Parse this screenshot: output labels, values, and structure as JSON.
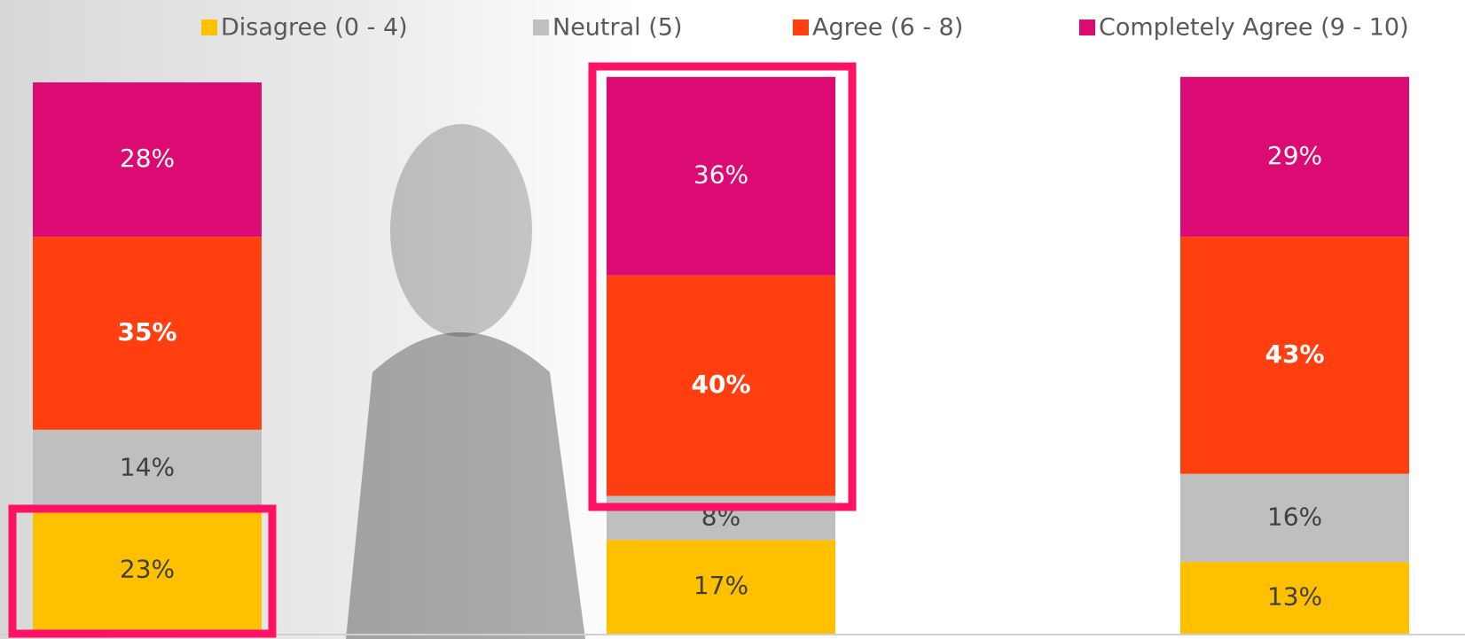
{
  "chart_data": {
    "type": "stacked_bar",
    "categories": [
      null,
      null,
      null
    ],
    "ylim": [
      0,
      100
    ],
    "series": [
      {
        "name": "Disagree (0 - 4)",
        "color": "#ffc000",
        "label_color": "#404040",
        "values": [
          23,
          17,
          13
        ],
        "value_labels": [
          "23%",
          "17%",
          "13%"
        ]
      },
      {
        "name": "Neutral (5)",
        "color": "#bfbfbf",
        "label_color": "#404040",
        "values": [
          14,
          8,
          16
        ],
        "value_labels": [
          "14%",
          "8%",
          "16%"
        ]
      },
      {
        "name": "Agree (6 - 8)",
        "color": "#ff3f0f",
        "label_color": "#ffffff",
        "label_bold": true,
        "values": [
          35,
          40,
          43
        ],
        "value_labels": [
          "35%",
          "40%",
          "43%"
        ]
      },
      {
        "name": "Completely Agree (9 - 10)",
        "color": "#dc0b74",
        "label_color": "#ffffff",
        "values": [
          28,
          36,
          29
        ],
        "value_labels": [
          "28%",
          "36%",
          "29%"
        ]
      }
    ],
    "legend": "top"
  }
}
